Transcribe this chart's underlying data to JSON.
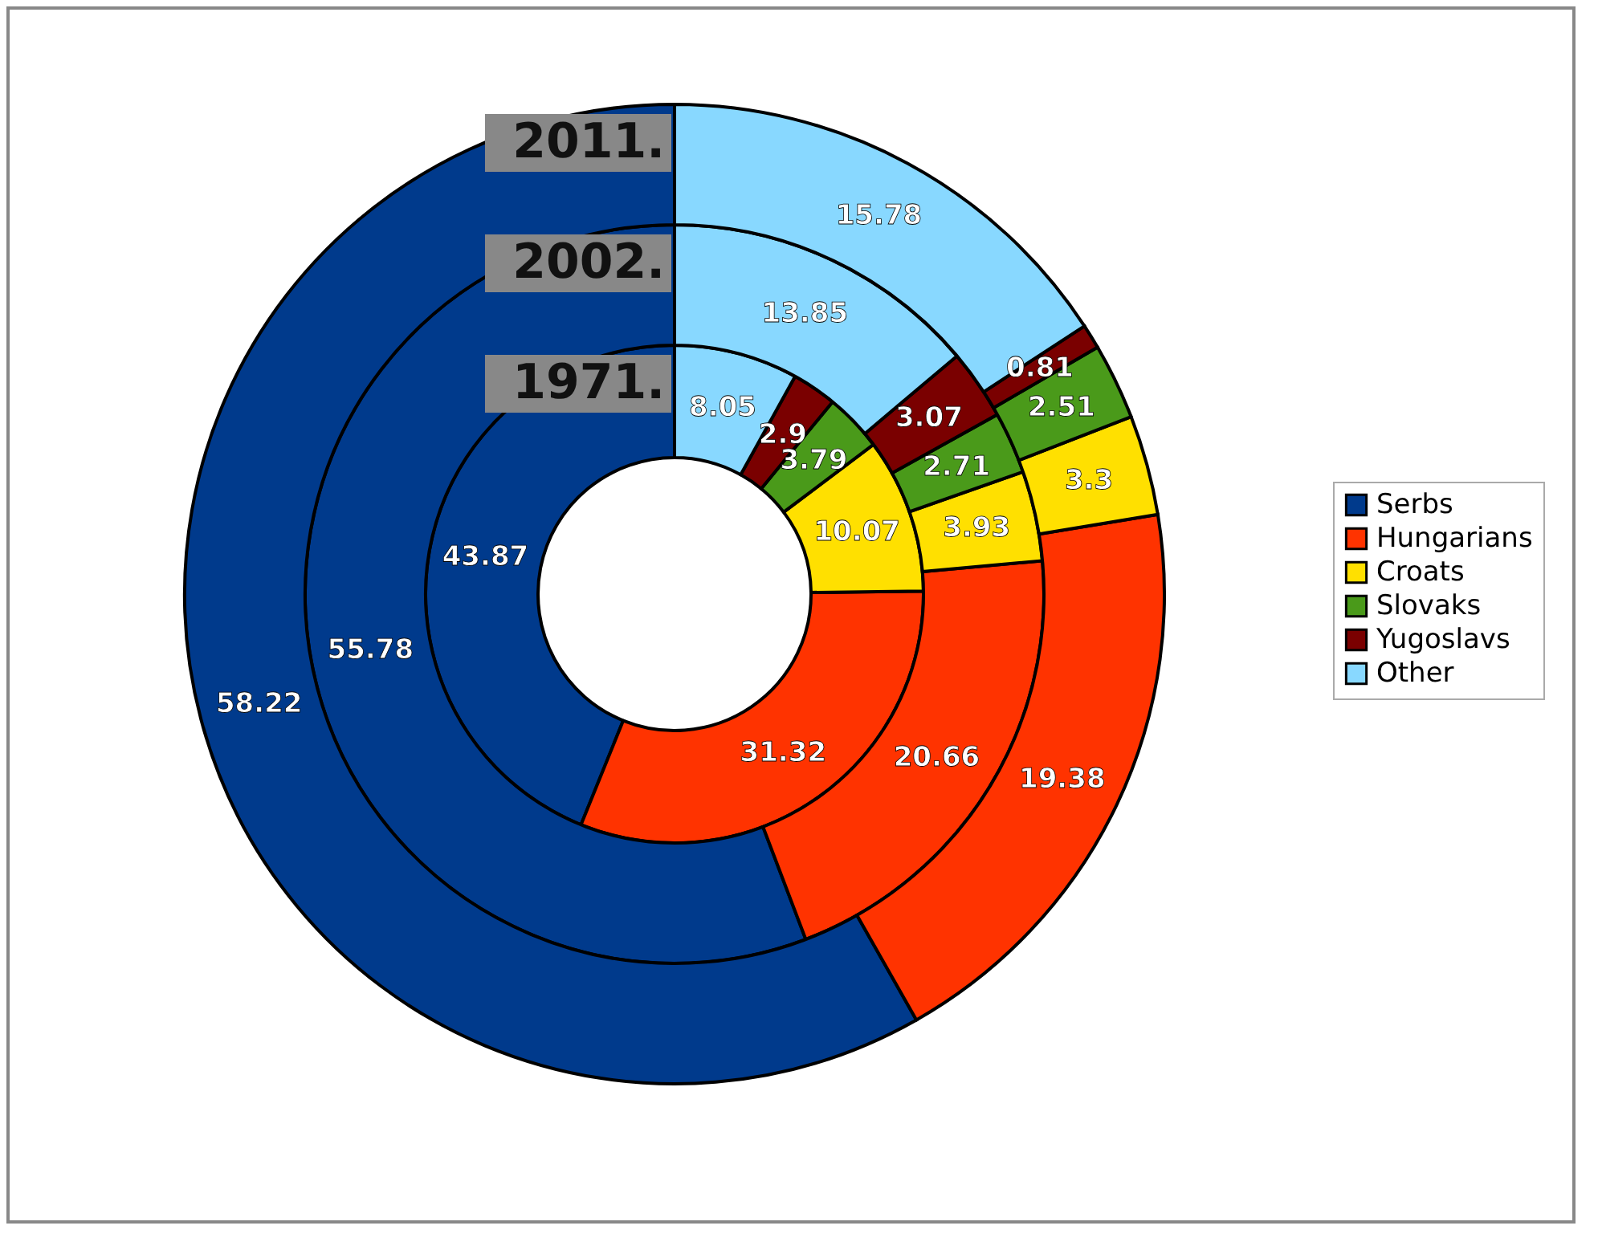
{
  "chart_data": {
    "type": "donut",
    "categories": [
      "Serbs",
      "Hungarians",
      "Croats",
      "Slovaks",
      "Yugoslavs",
      "Other"
    ],
    "colors": [
      "#003a8c",
      "#ff3300",
      "#ffe000",
      "#4a9a1a",
      "#7a0000",
      "#88d8ff"
    ],
    "series": [
      {
        "name": "1971.",
        "values": [
          43.87,
          31.32,
          10.07,
          3.79,
          2.9,
          8.05
        ]
      },
      {
        "name": "2002.",
        "values": [
          55.78,
          20.66,
          3.93,
          2.71,
          3.07,
          13.85
        ]
      },
      {
        "name": "2011.",
        "values": [
          58.22,
          19.38,
          3.3,
          2.51,
          0.81,
          15.78
        ]
      }
    ],
    "data_labels": true,
    "legend": "right"
  }
}
